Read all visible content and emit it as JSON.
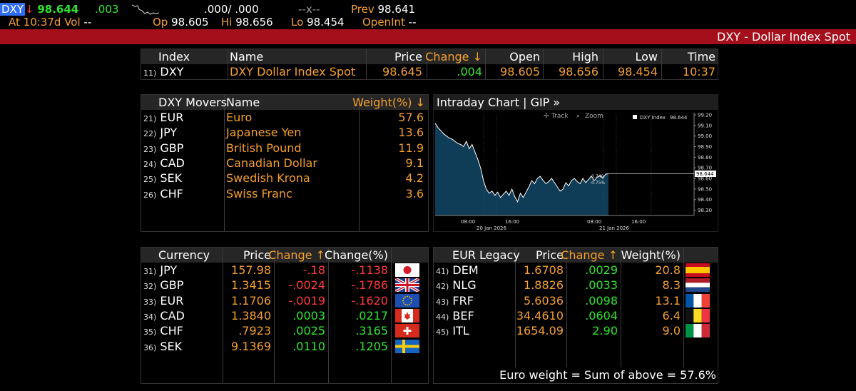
{
  "top": {
    "security": "DXY",
    "arrow": "↓",
    "price": "98.644",
    "change": ".003",
    "bid_ask": ".000/ .000",
    "size": "--x--",
    "prev_label": "Prev",
    "prev_value": "98.641",
    "at_text": "At 10:37d",
    "vol_label": "Vol",
    "vol_value": "--",
    "op_label": "Op",
    "op_value": "98.605",
    "hi_label": "Hi",
    "hi_value": "98.656",
    "lo_label": "Lo",
    "lo_value": "98.454",
    "openint_label": "OpenInt",
    "openint_value": "--"
  },
  "banner": {
    "title": "DXY - Dollar Index Spot"
  },
  "index_table": {
    "headers": {
      "index": "Index",
      "name": "Name",
      "price": "Price",
      "change": "Change ↓",
      "open": "Open",
      "high": "High",
      "low": "Low",
      "time": "Time"
    },
    "row": {
      "num": "11)",
      "index": "DXY",
      "name": "DXY Dollar Index Spot",
      "price": "98.645",
      "change": ".004",
      "open": "98.605",
      "high": "98.656",
      "low": "98.454",
      "time": "10:37"
    }
  },
  "movers": {
    "headers": {
      "movers": "DXY Movers",
      "name": "Name",
      "weight": "Weight(%) ↓"
    },
    "rows": [
      {
        "num": "21)",
        "code": "EUR",
        "name": "Euro",
        "weight": "57.6"
      },
      {
        "num": "22)",
        "code": "JPY",
        "name": "Japanese Yen",
        "weight": "13.6"
      },
      {
        "num": "23)",
        "code": "GBP",
        "name": "British Pound",
        "weight": "11.9"
      },
      {
        "num": "24)",
        "code": "CAD",
        "name": "Canadian Dollar",
        "weight": "9.1"
      },
      {
        "num": "25)",
        "code": "SEK",
        "name": "Swedish Krona",
        "weight": "4.2"
      },
      {
        "num": "26)",
        "code": "CHF",
        "name": "Swiss Franc",
        "weight": "3.6"
      }
    ]
  },
  "chart": {
    "header": "Intraday Chart | GIP »",
    "track_label": "Track",
    "zoom_label": "Zoom",
    "legend_label": "DXY Index",
    "legend_value": "98.644",
    "y_ticks": [
      "99.20",
      "99.10",
      "99.00",
      "98.90",
      "98.80",
      "98.70",
      "98.60",
      "98.50",
      "98.40",
      "98.30"
    ],
    "last_value": "98.644",
    "annot_1": "-0.749",
    "annot_2": "-0.75%",
    "x_ticks": [
      "08:00",
      "16:00",
      "08:00",
      "16:00"
    ],
    "date_1": "20 Jan 2026",
    "date_2": "21 Jan 2026",
    "accent": "#1f7fb8"
  },
  "chart_data": {
    "type": "area",
    "title": "DXY Index",
    "ylim": [
      98.25,
      99.22
    ],
    "x": [
      0,
      4,
      8,
      12,
      16,
      20,
      24,
      28,
      32,
      36,
      40,
      44,
      48,
      52,
      56,
      60,
      64,
      68,
      72,
      76,
      80,
      84,
      88,
      92,
      96,
      100,
      104,
      108,
      112,
      116,
      120,
      124,
      128,
      132,
      136,
      140,
      144,
      148,
      152,
      156,
      160,
      164,
      168,
      172,
      176,
      180,
      184,
      188,
      192,
      196,
      200,
      204,
      208,
      212,
      216,
      220,
      224,
      228,
      232,
      236,
      240,
      244
    ],
    "values": [
      99.12,
      99.08,
      99.05,
      99.02,
      99.0,
      98.98,
      98.97,
      98.95,
      98.93,
      98.92,
      98.9,
      98.95,
      98.88,
      98.92,
      98.85,
      98.78,
      98.7,
      98.58,
      98.5,
      98.46,
      98.48,
      98.44,
      98.47,
      98.42,
      98.45,
      98.48,
      98.44,
      98.5,
      98.43,
      98.38,
      98.46,
      98.42,
      98.47,
      98.52,
      98.58,
      98.55,
      98.6,
      98.62,
      98.58,
      98.55,
      98.57,
      98.6,
      98.56,
      98.52,
      98.48,
      98.5,
      98.56,
      98.53,
      98.58,
      98.6,
      98.57,
      98.55,
      98.6,
      98.56,
      98.59,
      98.62,
      98.58,
      98.61,
      98.63,
      98.6,
      98.64,
      98.644
    ]
  },
  "currency_table": {
    "headers": {
      "currency": "Currency",
      "price": "Price",
      "change": "Change ↑",
      "changepct": "Change(%)"
    },
    "rows": [
      {
        "num": "31)",
        "code": "JPY",
        "price": "157.98",
        "change": "-.18",
        "changepct": "-.1138",
        "flag": "japan-flag-icon"
      },
      {
        "num": "32)",
        "code": "GBP",
        "price": "1.3415",
        "change": "-.0024",
        "changepct": "-.1786",
        "flag": "uk-flag-icon"
      },
      {
        "num": "33)",
        "code": "EUR",
        "price": "1.1706",
        "change": "-.0019",
        "changepct": "-.1620",
        "flag": "eu-flag-icon"
      },
      {
        "num": "34)",
        "code": "CAD",
        "price": "1.3840",
        "change": ".0003",
        "changepct": ".0217",
        "flag": "canada-flag-icon"
      },
      {
        "num": "35)",
        "code": "CHF",
        "price": ".7923",
        "change": ".0025",
        "changepct": ".3165",
        "flag": "swiss-flag-icon"
      },
      {
        "num": "36)",
        "code": "SEK",
        "price": "9.1369",
        "change": ".0110",
        "changepct": ".1205",
        "flag": "sweden-flag-icon"
      }
    ]
  },
  "legacy_table": {
    "headers": {
      "legacy": "EUR Legacy",
      "price": "Price",
      "change": "Change ↑",
      "weight": "Weight(%)"
    },
    "rows": [
      {
        "num": "41)",
        "code": "DEM",
        "price": "1.6708",
        "change": ".0029",
        "weight": "20.8",
        "flag": "spain-flag-icon"
      },
      {
        "num": "42)",
        "code": "NLG",
        "price": "1.8826",
        "change": ".0033",
        "weight": "8.3",
        "flag": "netherlands-flag-icon"
      },
      {
        "num": "43)",
        "code": "FRF",
        "price": "5.6036",
        "change": ".0098",
        "weight": "13.1",
        "flag": "france-flag-icon"
      },
      {
        "num": "44)",
        "code": "BEF",
        "price": "34.4610",
        "change": ".0604",
        "weight": "6.4",
        "flag": "belgium-flag-icon"
      },
      {
        "num": "45)",
        "code": "ITL",
        "price": "1654.09",
        "change": "2.90",
        "weight": "9.0",
        "flag": "italy-flag-icon"
      }
    ],
    "footer": "Euro weight = Sum of above = 57.6%"
  },
  "colors": {
    "orange": "#f5a02a",
    "green": "#2ee62e",
    "red": "#ff3a3a",
    "banner": "#a50f1b",
    "highlight": "#2f6df3"
  }
}
